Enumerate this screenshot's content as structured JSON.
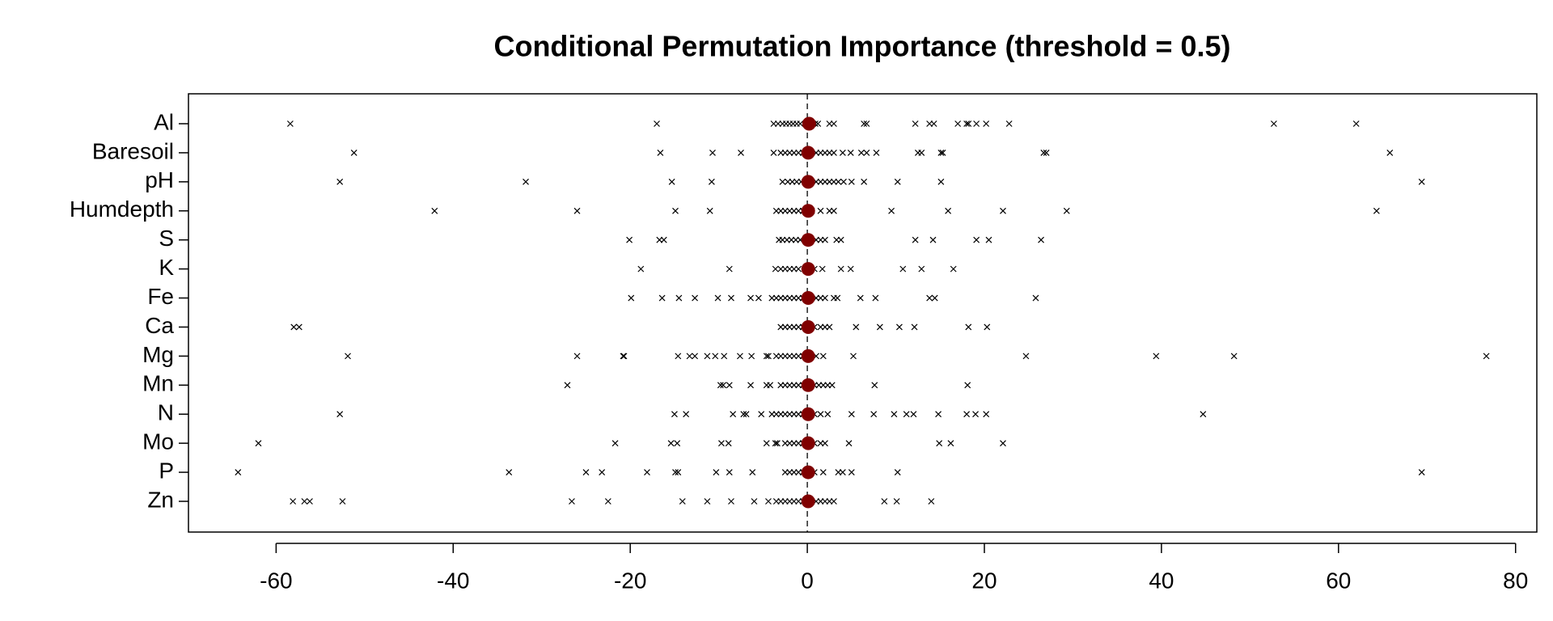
{
  "chart_data": {
    "type": "strip",
    "title": "Conditional Permutation Importance (threshold = 0.5)",
    "categories": [
      "Al",
      "Baresoil",
      "pH",
      "Humdepth",
      "S",
      "K",
      "Fe",
      "Ca",
      "Mg",
      "Mn",
      "N",
      "Mo",
      "P",
      "Zn"
    ],
    "points": [
      [
        -58.4,
        -17,
        -3.8,
        -3.3,
        -2.8,
        -2.4,
        -2,
        -1.6,
        -1.2,
        -0.8,
        0.9,
        1.2,
        2.5,
        3,
        6.4,
        6.7,
        12.2,
        13.8,
        14.3,
        17,
        18,
        18.2,
        19.1,
        20.2,
        22.8,
        52.7,
        62
      ],
      [
        -51.2,
        -16.6,
        -10.7,
        -7.5,
        -3.8,
        -3,
        -2.5,
        -2,
        -1.5,
        -1,
        -0.5,
        0.5,
        1,
        1.5,
        2,
        2.5,
        3,
        4,
        4.9,
        6.1,
        6.7,
        7.8,
        12.5,
        12.9,
        15.1,
        15.3,
        26.7,
        27,
        65.8
      ],
      [
        -52.8,
        -31.8,
        -15.3,
        -10.8,
        -2.8,
        -2.2,
        -1.7,
        -1.2,
        -0.7,
        0.5,
        1,
        1.5,
        2,
        2.5,
        3,
        3.5,
        4.1,
        5,
        6.4,
        10.2,
        15.1,
        69.4
      ],
      [
        -42.1,
        -26,
        -14.9,
        -11,
        -3.5,
        -3,
        -2.5,
        -2,
        -1.5,
        -1,
        -0.5,
        0.5,
        1.5,
        2.5,
        3,
        9.5,
        15.9,
        22.1,
        29.3,
        64.3
      ],
      [
        -20.1,
        -16.7,
        -16.2,
        -3.2,
        -2.8,
        -2.3,
        -1.8,
        -1.3,
        -0.8,
        1,
        1.5,
        2,
        3.3,
        3.8,
        12.2,
        14.2,
        19.1,
        20.5,
        26.4
      ],
      [
        -18.8,
        -8.8,
        -3.6,
        -3,
        -2.5,
        -2,
        -1.5,
        -1,
        0.8,
        1.7,
        3.8,
        4.9,
        10.8,
        12.9,
        16.5
      ],
      [
        -19.9,
        -16.4,
        -14.5,
        -12.7,
        -10.1,
        -8.6,
        -6.4,
        -5.5,
        -4,
        -3.5,
        -3,
        -2.5,
        -2,
        -1.5,
        -1,
        -0.5,
        0.5,
        1,
        1.5,
        2,
        3,
        3.4,
        6,
        7.7,
        13.8,
        14.4,
        25.8
      ],
      [
        -58,
        -57.4,
        -3,
        -2.5,
        -2,
        -1.5,
        -1,
        -0.5,
        0.8,
        1.5,
        2,
        2.5,
        5.5,
        8.2,
        10.4,
        12.1,
        18.2,
        20.3
      ],
      [
        -51.9,
        -26,
        -20.8,
        -20.7,
        -14.6,
        -13.3,
        -12.7,
        -11.3,
        -10.4,
        -9.4,
        -7.6,
        -6.3,
        -4.6,
        -4.4,
        -3.5,
        -3,
        -2.5,
        -2,
        -1.5,
        -1,
        -0.5,
        1,
        1.8,
        5.2,
        24.7,
        39.4,
        48.2,
        76.7
      ],
      [
        -27.1,
        -9.8,
        -9.5,
        -8.8,
        -6.4,
        -4.6,
        -4.2,
        -3,
        -2.5,
        -2,
        -1.5,
        -1,
        -0.5,
        0.8,
        1.3,
        1.8,
        2.3,
        2.8,
        7.6,
        18.1
      ],
      [
        -52.8,
        -15,
        -13.7,
        -8.4,
        -7.2,
        -6.9,
        -5.2,
        -4,
        -3.5,
        -3,
        -2.5,
        -2,
        -1.5,
        -1,
        -0.5,
        0.8,
        1.5,
        2.3,
        5,
        7.5,
        9.8,
        11.2,
        12,
        14.8,
        18,
        19,
        20.2,
        44.7
      ],
      [
        -62,
        -21.7,
        -15.4,
        -14.7,
        -9.7,
        -8.9,
        -4.6,
        -3.6,
        -3.4,
        -2.5,
        -2,
        -1.5,
        -1,
        -0.5,
        0.8,
        1.5,
        2,
        4.7,
        14.9,
        16.2,
        22.1
      ],
      [
        -64.3,
        -33.7,
        -25,
        -23.2,
        -18.1,
        -14.9,
        -14.6,
        -10.3,
        -8.8,
        -6.2,
        -2.5,
        -2,
        -1.5,
        -1,
        -0.5,
        0.8,
        1.8,
        3.5,
        4,
        5,
        10.2,
        69.4
      ],
      [
        -58.1,
        -56.8,
        -56.2,
        -52.5,
        -26.6,
        -22.5,
        -14.1,
        -11.3,
        -8.6,
        -6,
        -4.4,
        -3.5,
        -3,
        -2.5,
        -2,
        -1.5,
        -1,
        -0.5,
        0.5,
        1,
        1.5,
        2,
        2.5,
        3,
        8.7,
        10.1,
        14
      ]
    ],
    "values": [
      0.2,
      0.1,
      0.1,
      0.1,
      0.1,
      0.1,
      0.1,
      0.1,
      0.1,
      0.1,
      0.1,
      0.1,
      0.1,
      0.1
    ],
    "point_color": "#000000",
    "dot_color": "#800000",
    "xlim": [
      -69.9,
      82.4
    ],
    "xticks": [
      -60,
      -40,
      -20,
      0,
      20,
      40,
      60,
      80
    ]
  }
}
